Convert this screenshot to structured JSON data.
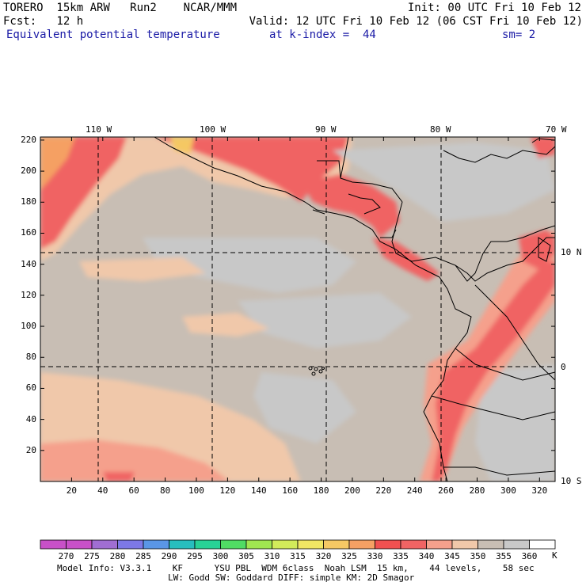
{
  "header": {
    "line1_left": "TORERO  15km ARW   Run2    NCAR/MMM",
    "line1_right": "Init: 00 UTC Fri 10 Feb 12",
    "line2_left": "Fcst:   12 h",
    "line2_right": "Valid: 12 UTC Fri 10 Feb 12 (06 CST Fri 10 Feb 12)",
    "field": "Equivalent potential temperature",
    "level": "at k-index =  44",
    "smoothing": "sm= 2"
  },
  "axes": {
    "x_ticks": [
      "20",
      "40",
      "60",
      "80",
      "100",
      "120",
      "140",
      "160",
      "180",
      "200",
      "220",
      "240",
      "260",
      "280",
      "300",
      "320"
    ],
    "y_ticks": [
      "20",
      "40",
      "60",
      "80",
      "100",
      "120",
      "140",
      "160",
      "180",
      "200",
      "220"
    ],
    "lon_labels": [
      "110 W",
      "100 W",
      "90 W",
      "80 W",
      "70 W"
    ],
    "lat_labels": [
      "10 N",
      "0",
      "10 S"
    ]
  },
  "colorbar": {
    "labels": [
      "270",
      "275",
      "280",
      "285",
      "290",
      "295",
      "300",
      "305",
      "310",
      "315",
      "320",
      "325",
      "330",
      "335",
      "340",
      "345",
      "350",
      "355",
      "360"
    ],
    "unit": "K",
    "colors": [
      "#c850c8",
      "#a06ed2",
      "#7d78e6",
      "#5a96e6",
      "#28bebe",
      "#28d296",
      "#50dc64",
      "#a0e650",
      "#d2eb5a",
      "#f0e664",
      "#f5c864",
      "#f5a064",
      "#f05050",
      "#f06464",
      "#f5a08c",
      "#f0c8aa",
      "#c8beb4",
      "#c8c8c8",
      "#ffffff"
    ]
  },
  "footer": {
    "line1": "Model Info: V3.3.1    KF      YSU PBL  WDM 6class  Noah LSM  15 km,    44 levels,    58 sec",
    "line2": "LW: Godd SW: Goddard DIFF: simple KM: 2D Smagor"
  }
}
